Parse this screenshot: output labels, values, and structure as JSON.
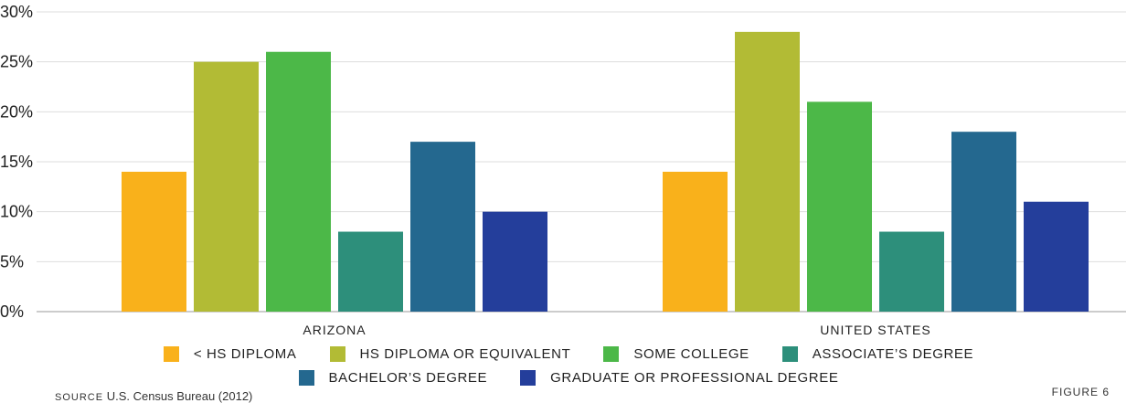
{
  "chart_data": {
    "type": "bar",
    "categories": [
      "ARIZONA",
      "UNITED STATES"
    ],
    "series": [
      {
        "name": "< HS DIPLOMA",
        "color": "#f9b11b",
        "values": [
          14,
          14
        ]
      },
      {
        "name": "HS DIPLOMA OR EQUIVALENT",
        "color": "#b2bb35",
        "values": [
          25,
          28
        ]
      },
      {
        "name": "SOME COLLEGE",
        "color": "#4cb848",
        "values": [
          26,
          21
        ]
      },
      {
        "name": "ASSOCIATE’S DEGREE",
        "color": "#2d8f7b",
        "values": [
          8,
          8
        ]
      },
      {
        "name": "BACHELOR’S DEGREE",
        "color": "#24688f",
        "values": [
          17,
          18
        ]
      },
      {
        "name": "GRADUATE OR PROFESSIONAL DEGREE",
        "color": "#243e9b",
        "values": [
          10,
          11
        ]
      }
    ],
    "ylim": [
      0,
      30
    ],
    "yticks": [
      "0%",
      "5%",
      "10%",
      "15%",
      "20%",
      "25%",
      "30%"
    ],
    "ytick_values": [
      0,
      5,
      10,
      15,
      20,
      25,
      30
    ],
    "grid": true,
    "legend_position": "bottom"
  },
  "footer": {
    "source_label": "SOURCE",
    "source_text": "U.S. Census Bureau (2012)",
    "figure_label": "FIGURE 6"
  }
}
